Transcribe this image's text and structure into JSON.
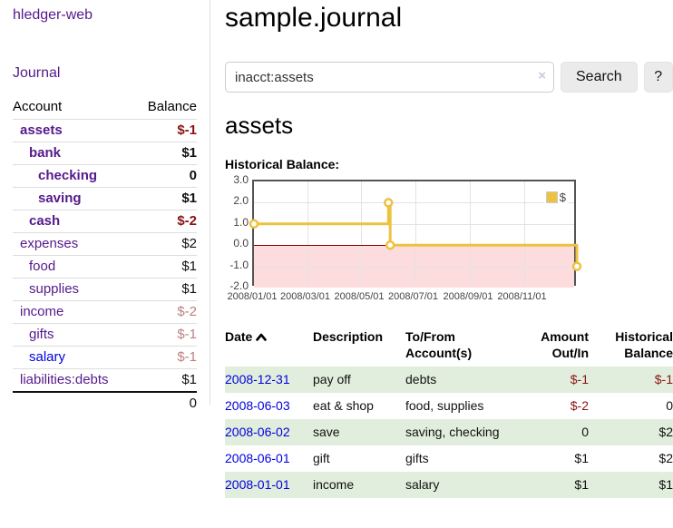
{
  "colors": {
    "purple": "#551a8b",
    "blue": "#0000dd",
    "neg-strong": "#8b1212",
    "neg-soft": "#bd8080",
    "row-green": "#e2eedd",
    "gold": "#edc240",
    "pink": "#fcdcdc",
    "zero": "#8b0000",
    "grid": "#e3e3e3",
    "plot-border": "#545454"
  },
  "app": {
    "brand": "hledger-web",
    "nav_journal": "Journal"
  },
  "sidebar": {
    "header": {
      "account": "Account",
      "balance": "Balance"
    },
    "accounts": [
      {
        "name": "assets",
        "balance": "$-1"
      },
      {
        "name": "bank",
        "balance": "$1"
      },
      {
        "name": "checking",
        "balance": "0"
      },
      {
        "name": "saving",
        "balance": "$1"
      },
      {
        "name": "cash",
        "balance": "$-2"
      },
      {
        "name": "expenses",
        "balance": "$2"
      },
      {
        "name": "food",
        "balance": "$1"
      },
      {
        "name": "supplies",
        "balance": "$1"
      },
      {
        "name": "income",
        "balance": "$-2"
      },
      {
        "name": "gifts",
        "balance": "$-1"
      },
      {
        "name": "salary",
        "balance": "$-1"
      },
      {
        "name": "liabilities:debts",
        "balance": "$1"
      }
    ],
    "total": "0"
  },
  "main": {
    "title": "sample.journal",
    "search": {
      "value": "inacct:assets",
      "clear_icon": "×",
      "button": "Search",
      "help_button": "?"
    },
    "account_heading": "assets",
    "chart_label": "Historical Balance:"
  },
  "chart_data": {
    "type": "line",
    "title": "Historical Balance",
    "step": true,
    "xlim": [
      "2008/01/01",
      "2009/01/01"
    ],
    "ylim": [
      -2,
      3
    ],
    "x_ticks": [
      "2008/01/01",
      "2008/03/01",
      "2008/05/01",
      "2008/07/01",
      "2008/09/01",
      "2008/11/01"
    ],
    "y_ticks": [
      "3.0",
      "2.0",
      "1.0",
      "0.0",
      "-1.0",
      "-2.0"
    ],
    "legend": {
      "label": "$",
      "position": "top-right"
    },
    "series": [
      {
        "name": "$",
        "points": [
          [
            "2008/01/01",
            1
          ],
          [
            "2008/06/01",
            2
          ],
          [
            "2008/06/03",
            0
          ],
          [
            "2008/12/31",
            -1
          ]
        ]
      }
    ],
    "negative_region": true
  },
  "register": {
    "headers": {
      "date": "Date",
      "description": "Description",
      "accounts": "To/From Account(s)",
      "amount": "Amount Out/In",
      "balance": "Historical Balance"
    },
    "rows": [
      {
        "date": "2008-12-31",
        "description": "pay off",
        "accounts": "debts",
        "amount": "$-1",
        "balance": "$-1"
      },
      {
        "date": "2008-06-03",
        "description": "eat & shop",
        "accounts": "food, supplies",
        "amount": "$-2",
        "balance": "0"
      },
      {
        "date": "2008-06-02",
        "description": "save",
        "accounts": "saving, checking",
        "amount": "0",
        "balance": "$2"
      },
      {
        "date": "2008-06-01",
        "description": "gift",
        "accounts": "gifts",
        "amount": "$1",
        "balance": "$2"
      },
      {
        "date": "2008-01-01",
        "description": "income",
        "accounts": "salary",
        "amount": "$1",
        "balance": "$1"
      }
    ]
  }
}
